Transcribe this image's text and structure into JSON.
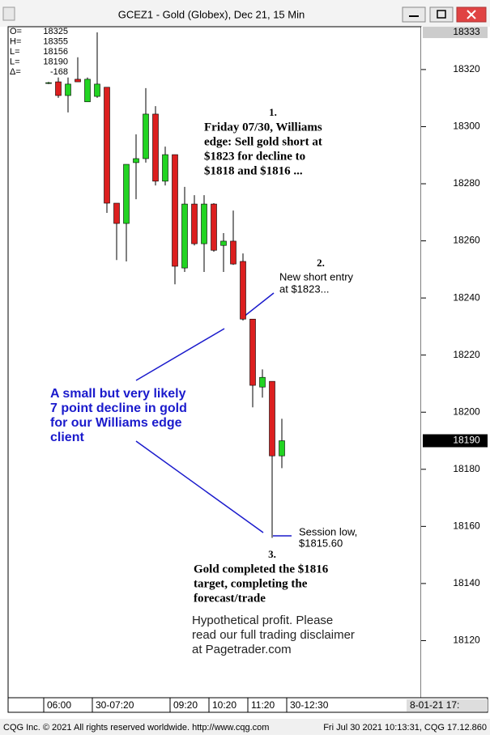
{
  "window": {
    "title": "GCEZ1 - Gold (Globex), Dec 21, 15 Min"
  },
  "footer": {
    "left": "CQG Inc. © 2021 All rights reserved worldwide. http://www.cqg.com",
    "right": "Fri Jul 30 2021 10:13:31, CQG 17.12.860"
  },
  "info": [
    {
      "label": "O=",
      "value": "18325"
    },
    {
      "label": "H=",
      "value": "18355"
    },
    {
      "label": "L=",
      "value": "18156"
    },
    {
      "label": "L=",
      "value": "18190"
    },
    {
      "label": "Δ=",
      "value": "-168"
    }
  ],
  "chart_data": {
    "type": "candlestick",
    "categories": [
      "06:00",
      null,
      null,
      null,
      null,
      "30-07:20",
      null,
      null,
      null,
      null,
      null,
      null,
      null,
      "09:20",
      null,
      null,
      null,
      "10:20",
      null,
      null,
      null,
      "11:20",
      null,
      null,
      null,
      "30-12:30"
    ],
    "open": [
      18315.2,
      18315.7,
      18310.9,
      18316.6,
      18308.7,
      18310.6,
      18313.8,
      18273.2,
      18266.1,
      18287.4,
      18288.8,
      18304.4,
      18280.9,
      18290.2,
      18250.5,
      18272.9,
      18259.0,
      18272.9,
      18258.4,
      18259.9,
      18252.8,
      18232.6,
      18208.8,
      18210.8,
      18184.7,
      null
    ],
    "high": [
      18315.7,
      18317.2,
      18317.2,
      18324.3,
      18317.2,
      18333,
      18313.8,
      18273.2,
      18286.8,
      18297.3,
      18313.5,
      18307.2,
      18293.0,
      18290.2,
      18278.9,
      18276.0,
      18276.0,
      18273.2,
      18262.7,
      18270.6,
      18255.6,
      18232.6,
      18215.0,
      18210.8,
      18197.7,
      null
    ],
    "low": [
      18314.9,
      18310.1,
      18305.0,
      18315.7,
      18308.7,
      18310.1,
      18269.8,
      18253.3,
      18252.8,
      18274.6,
      18287.4,
      18279.4,
      18279.4,
      18244.8,
      18249.1,
      18258.4,
      18249.1,
      18256.2,
      18249.1,
      18251.6,
      18232.1,
      18201.7,
      18205.1,
      18156,
      18180.4,
      null
    ],
    "close": [
      18315.4,
      18310.9,
      18314.9,
      18315.7,
      18316.6,
      18314.9,
      18273.2,
      18266.1,
      18286.8,
      18288.8,
      18304.4,
      18280.9,
      18290.2,
      18251.1,
      18272.9,
      18259.0,
      18272.9,
      18256.7,
      18259.9,
      18251.9,
      18232.6,
      18209.4,
      18212.2,
      18184.7,
      18190,
      null
    ],
    "up_color": "#22d422",
    "down_color": "#dc1f1f",
    "ylim": [
      18100,
      18335
    ],
    "yticks": [
      18120,
      18140,
      18160,
      18180,
      18200,
      18220,
      18240,
      18260,
      18280,
      18300,
      18320
    ],
    "high_marker": 18333,
    "last_price": 18190,
    "x_end_label": "8-01-21  17:",
    "annotations": [
      {
        "number": "1.",
        "lines": [
          "Friday 07/30, Williams",
          "edge: Sell gold short at",
          "$1823 for decline to",
          "$1818 and $1816 ..."
        ]
      },
      {
        "number": "2.",
        "lines": [
          "New short entry",
          "at $1823..."
        ]
      },
      {
        "lines": [
          "A small but very likely",
          "7 point decline in gold",
          "for our Williams edge",
          "client"
        ]
      },
      {
        "lines": [
          "Session low,",
          "$1815.60"
        ]
      },
      {
        "number": "3.",
        "lines": [
          "Gold completed the $1816",
          "target, completing the",
          "forecast/trade"
        ]
      },
      {
        "lines": [
          "Hypothetical profit. Please",
          "read our full trading disclaimer",
          "at Pagetrader.com"
        ]
      }
    ]
  }
}
